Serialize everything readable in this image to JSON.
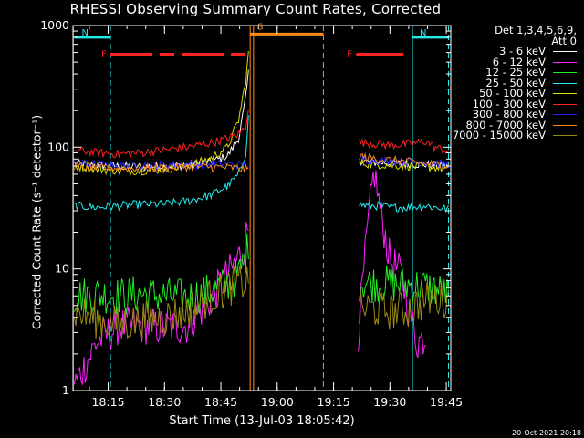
{
  "title": "RHESSI Observing Summary Count Rates, Corrected",
  "timestamp": "20-Oct-2021 20:18",
  "chart_data": {
    "type": "line",
    "title": "RHESSI Observing Summary Count Rates, Corrected",
    "xlabel": "Start Time (13-Jul-03 18:05:42)",
    "ylabel": "Corrected Count Rate (s⁻¹ detector⁻¹)",
    "xscale": "linear",
    "yscale": "log",
    "xlim": [
      18.094,
      19.77
    ],
    "ylim": [
      1,
      1000
    ],
    "x_ticks": [
      "18:15",
      "18:30",
      "18:45",
      "19:00",
      "19:15",
      "19:30",
      "19:45"
    ],
    "x_tick_values": [
      18.25,
      18.5,
      18.75,
      19.0,
      19.25,
      19.5,
      19.75
    ],
    "y_ticks": [
      "1",
      "10",
      "100",
      "1000"
    ],
    "y_tick_values": [
      1,
      10,
      100,
      1000
    ],
    "legend": {
      "header_line1": "Det 1,3,4,5,6,9,",
      "header_line2": "Att 0",
      "placement": "top-right, outside plot"
    },
    "gaps": [
      [
        18.88,
        19.35
      ]
    ],
    "series": [
      {
        "name": "3 - 6 keV",
        "color": "#ffffff",
        "x": [
          18.1,
          18.2,
          18.3,
          18.4,
          18.5,
          18.6,
          18.7,
          18.78,
          18.83,
          18.86,
          18.875,
          19.36,
          19.4,
          19.45,
          19.5,
          19.58,
          19.66,
          19.7,
          19.76
        ],
        "values": [
          74,
          71,
          70,
          69,
          70,
          71,
          75,
          85,
          120,
          250,
          450,
          78,
          76,
          75,
          74,
          73,
          72,
          71,
          70
        ]
      },
      {
        "name": "6 - 12 keV",
        "color": "#ff22ff",
        "x": [
          18.1,
          18.2,
          18.3,
          18.4,
          18.5,
          18.6,
          18.7,
          18.75,
          18.8,
          18.85,
          18.875,
          19.36,
          19.4,
          19.43,
          19.46,
          19.5,
          19.55,
          19.6,
          19.62,
          19.66
        ],
        "values": [
          1.1,
          2.5,
          3.4,
          3.4,
          3.3,
          3.4,
          5.5,
          7.5,
          10,
          15,
          24,
          3.0,
          20,
          65,
          28,
          12,
          9,
          3.5,
          2.5,
          2.8
        ]
      },
      {
        "name": "12 - 25 keV",
        "color": "#22ee22",
        "x": [
          18.1,
          18.2,
          18.3,
          18.4,
          18.5,
          18.6,
          18.7,
          18.78,
          18.83,
          18.86,
          18.875,
          19.36,
          19.4,
          19.45,
          19.5,
          19.58,
          19.66,
          19.7,
          19.76
        ],
        "values": [
          6.0,
          6.2,
          6.0,
          6.2,
          6.0,
          5.8,
          6.5,
          7.5,
          9,
          13,
          16,
          7.8,
          7.7,
          7.6,
          7.5,
          7.4,
          7.2,
          6.8,
          6.0
        ]
      },
      {
        "name": "25 - 50 keV",
        "color": "#22eeee",
        "x": [
          18.1,
          18.2,
          18.3,
          18.4,
          18.5,
          18.6,
          18.7,
          18.78,
          18.83,
          18.86,
          18.875,
          19.36,
          19.4,
          19.45,
          19.5,
          19.58,
          19.66,
          19.7,
          19.76
        ],
        "values": [
          33,
          32,
          33,
          34,
          34,
          36,
          40,
          48,
          60,
          90,
          200,
          34,
          33,
          33,
          32,
          32,
          33,
          32,
          31
        ]
      },
      {
        "name": "50 - 100 keV",
        "color": "#dddd00",
        "x": [
          18.1,
          18.2,
          18.3,
          18.4,
          18.5,
          18.6,
          18.7,
          18.78,
          18.83,
          18.86,
          18.875,
          19.36,
          19.4,
          19.45,
          19.5,
          19.58,
          19.66,
          19.7,
          19.76
        ],
        "values": [
          70,
          66,
          64,
          64,
          66,
          70,
          80,
          100,
          170,
          350,
          650,
          75,
          73,
          72,
          71,
          70,
          69,
          68,
          66
        ]
      },
      {
        "name": "100 - 300 keV",
        "color": "#ff2222",
        "x": [
          18.1,
          18.2,
          18.3,
          18.4,
          18.5,
          18.6,
          18.7,
          18.78,
          18.83,
          18.86,
          18.875,
          19.36,
          19.4,
          19.45,
          19.5,
          19.58,
          19.66,
          19.7,
          19.76
        ],
        "values": [
          95,
          90,
          88,
          90,
          95,
          100,
          108,
          118,
          128,
          150,
          230,
          110,
          108,
          106,
          104,
          106,
          112,
          100,
          92
        ]
      },
      {
        "name": "300 - 800 keV",
        "color": "#2222ff",
        "x": [
          18.1,
          18.2,
          18.3,
          18.4,
          18.5,
          18.6,
          18.7,
          18.78,
          18.83,
          18.86,
          18.875,
          19.36,
          19.4,
          19.45,
          19.5,
          19.58,
          19.66,
          19.7,
          19.76
        ],
        "values": [
          73,
          72,
          71,
          71,
          72,
          72,
          72,
          73,
          72,
          71,
          70,
          80,
          79,
          78,
          77,
          76,
          75,
          74,
          72
        ]
      },
      {
        "name": "800 - 7000 keV",
        "color": "#ff8c1a",
        "x": [
          18.1,
          18.2,
          18.3,
          18.4,
          18.5,
          18.6,
          18.7,
          18.78,
          18.83,
          18.86,
          18.875,
          19.36,
          19.4,
          19.45,
          19.5,
          19.58,
          19.66,
          19.7,
          19.76
        ],
        "values": [
          70,
          68,
          67,
          67,
          68,
          69,
          69,
          68,
          67,
          66,
          65,
          85,
          82,
          80,
          78,
          76,
          74,
          72,
          70
        ]
      },
      {
        "name": "7000 - 15000 keV",
        "color": "#9a8a10",
        "x": [
          18.1,
          18.2,
          18.3,
          18.4,
          18.5,
          18.6,
          18.7,
          18.78,
          18.83,
          18.86,
          18.875,
          19.36,
          19.4,
          19.45,
          19.5,
          19.58,
          19.66,
          19.7,
          19.76
        ],
        "values": [
          4.5,
          3.8,
          3.5,
          3.8,
          4.0,
          4.5,
          5.8,
          7.0,
          7.5,
          7.8,
          8.0,
          4.5,
          4.8,
          4.6,
          4.5,
          4.6,
          5.5,
          5.8,
          5.6
        ]
      }
    ],
    "flags": [
      {
        "label": "N",
        "color": "#22eeee",
        "x_start": 18.1,
        "x_end": 18.26,
        "y": 800
      },
      {
        "label": "N",
        "color": "#22eeee",
        "x_start": 19.6,
        "x_end": 19.76,
        "y": 800
      },
      {
        "label": "F",
        "color": "#ff2222",
        "x_start": 18.26,
        "x_end": 18.87,
        "y": 580,
        "dashed": true
      },
      {
        "label": "F",
        "color": "#ff2222",
        "x_start": 19.35,
        "x_end": 19.56,
        "y": 580
      },
      {
        "label": "S",
        "color": "#ff8c1a",
        "x_start": 18.88,
        "x_end": 19.205,
        "y": 850
      }
    ],
    "vertical_markers": [
      {
        "x": 18.26,
        "color": "#22eeee",
        "style": "dashed"
      },
      {
        "x": 19.6,
        "color": "#22eeee",
        "style": "solid"
      },
      {
        "x": 19.76,
        "color": "#22eeee",
        "style": "dashed"
      },
      {
        "x": 18.88,
        "color": "#ff8c1a",
        "style": "solid"
      },
      {
        "x": 18.895,
        "color": "#ff8c1a",
        "style": "solid"
      },
      {
        "x": 19.205,
        "color": "#ff8c1a",
        "style": "dashed"
      },
      {
        "x": 18.095,
        "color": "#22eeee",
        "style": "solid"
      }
    ]
  }
}
